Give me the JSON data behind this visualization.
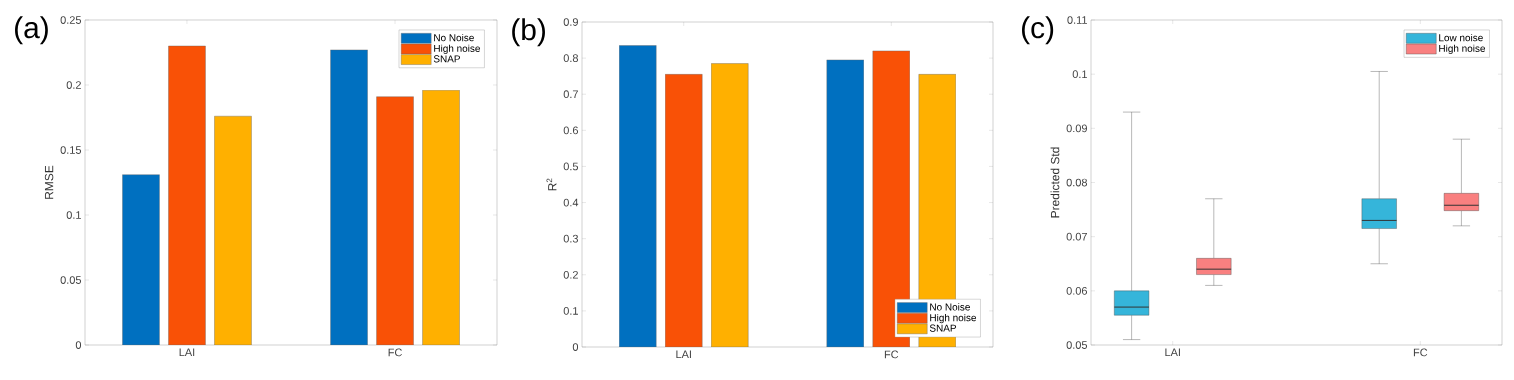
{
  "chart_data": [
    {
      "type": "bar",
      "title": "(a)",
      "ylabel": "RMSE",
      "categories": [
        "LAI",
        "FC"
      ],
      "series": [
        {
          "name": "No Noise",
          "color": "#0070c0",
          "values": [
            0.131,
            0.227
          ]
        },
        {
          "name": "High noise",
          "color": "#f95106",
          "values": [
            0.23,
            0.191
          ]
        },
        {
          "name": "SNAP",
          "color": "#ffb000",
          "values": [
            0.176,
            0.196
          ]
        }
      ],
      "ylim": [
        0,
        0.25
      ],
      "yticks": [
        0,
        0.05,
        0.1,
        0.15,
        0.2,
        0.25
      ],
      "legend": "top right"
    },
    {
      "type": "bar",
      "title": "(b)",
      "ylabel": "R$^{2}$",
      "categories": [
        "LAI",
        "FC"
      ],
      "series": [
        {
          "name": "No Noise",
          "color": "#0070c0",
          "values": [
            0.835,
            0.795
          ]
        },
        {
          "name": "High noise",
          "color": "#f95106",
          "values": [
            0.755,
            0.82
          ]
        },
        {
          "name": "SNAP",
          "color": "#ffb000",
          "values": [
            0.785,
            0.755
          ]
        }
      ],
      "ylim": [
        0,
        0.9
      ],
      "yticks": [
        0,
        0.1,
        0.2,
        0.3,
        0.4,
        0.5,
        0.6,
        0.7,
        0.8,
        0.9
      ],
      "legend": "bottom right"
    },
    {
      "type": "box",
      "title": "(c)",
      "ylabel": "Predicted Std",
      "categories": [
        "LAI",
        "FC"
      ],
      "series": [
        {
          "name": "Low noise",
          "color": "#35b5da",
          "boxes": [
            {
              "low": 0.051,
              "q1": 0.0555,
              "median": 0.057,
              "q3": 0.06,
              "high": 0.093
            },
            {
              "low": 0.065,
              "q1": 0.0715,
              "median": 0.073,
              "q3": 0.077,
              "high": 0.1005
            }
          ]
        },
        {
          "name": "High noise",
          "color": "#f98080",
          "boxes": [
            {
              "low": 0.061,
              "q1": 0.063,
              "median": 0.064,
              "q3": 0.066,
              "high": 0.077
            },
            {
              "low": 0.072,
              "q1": 0.0748,
              "median": 0.0758,
              "q3": 0.078,
              "high": 0.088
            }
          ]
        }
      ],
      "ylim": [
        0.05,
        0.11
      ],
      "yticks": [
        0.05,
        0.06,
        0.07,
        0.08,
        0.09,
        0.1,
        0.11
      ],
      "legend": "top right"
    }
  ]
}
